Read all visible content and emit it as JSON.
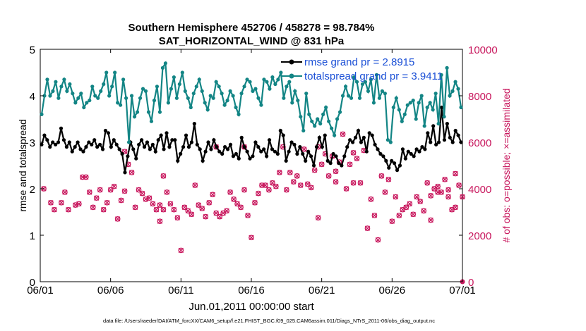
{
  "chart_data": {
    "type": "line",
    "title": "Southern Hemisphere 452706 / 458278 = 98.784%",
    "subtitle": "SAT_HORIZONTAL_WIND @ 831 hPa",
    "xlabel": "Jun.01,2011 00:00:00 start",
    "ylabel": "rmse and totalspread",
    "y2label": "# of obs: o=possible; ×=assimilated",
    "footnote": "data file: /Users/raeder/DAI/ATM_forcXX/CAM6_setup/f.e21.FHIST_BGC.f09_025.CAM6assim.011/Diags_NTrS_2011-06/obs_diag_output.nc",
    "xlim": [
      0,
      30
    ],
    "ylim": [
      0,
      5
    ],
    "y2lim": [
      0,
      10000
    ],
    "x_ticks": [
      {
        "pos": 0,
        "label": "06/01"
      },
      {
        "pos": 5,
        "label": "06/06"
      },
      {
        "pos": 10,
        "label": "06/11"
      },
      {
        "pos": 15,
        "label": "06/16"
      },
      {
        "pos": 20,
        "label": "06/21"
      },
      {
        "pos": 25,
        "label": "06/26"
      },
      {
        "pos": 30,
        "label": "07/01"
      }
    ],
    "y_ticks": [
      "0",
      "1",
      "2",
      "3",
      "4",
      "5"
    ],
    "y2_ticks": [
      "0",
      "2000",
      "4000",
      "6000",
      "8000",
      "10000"
    ],
    "legend_position": "top-right",
    "series": [
      {
        "name": "rmse grand pr = 2.8915",
        "axis": "left",
        "color": "#000000",
        "marker": "dot",
        "values": [
          2.95,
          3.15,
          3.05,
          2.9,
          3.0,
          2.95,
          3.0,
          3.3,
          3.05,
          2.9,
          3.0,
          2.8,
          2.9,
          3.0,
          2.85,
          2.8,
          2.9,
          3.0,
          2.95,
          3.05,
          2.9,
          2.95,
          2.85,
          3.25,
          3.2,
          2.9,
          3.05,
          2.95,
          2.85,
          2.75,
          2.35,
          2.7,
          3.0,
          2.85,
          2.65,
          2.95,
          3.05,
          2.9,
          3.0,
          2.85,
          2.95,
          2.8,
          3.05,
          3.15,
          2.85,
          3.2,
          2.9,
          3.05,
          3.05,
          2.6,
          2.75,
          2.9,
          3.15,
          2.9,
          3.0,
          3.4,
          2.95,
          2.85,
          2.6,
          2.8,
          3.0,
          2.85,
          3.05,
          2.9,
          2.8,
          2.75,
          2.9,
          2.85,
          2.95,
          2.7,
          2.75,
          2.65,
          3.1,
          2.9,
          2.8,
          2.65,
          2.7,
          3.0,
          2.9,
          2.8,
          2.85,
          2.7,
          3.05,
          2.85,
          2.8,
          2.75,
          3.25,
          3.15,
          2.6,
          2.8,
          3.0,
          2.95,
          2.75,
          2.9,
          2.75,
          2.6,
          2.8,
          2.7,
          2.5,
          2.9,
          3.1,
          2.9,
          3.15,
          2.6,
          2.55,
          2.75,
          2.7,
          2.55,
          2.5,
          2.7,
          2.9,
          3.05,
          3.0,
          3.1,
          3.25,
          3.0,
          3.1,
          2.8,
          3.2,
          3.15,
          2.95,
          2.85,
          2.75,
          2.7,
          2.6,
          2.45,
          2.6,
          2.55,
          2.4,
          2.5,
          2.85,
          2.65,
          2.8,
          2.75,
          2.7,
          2.85,
          2.8,
          2.9,
          2.85,
          3.2,
          3.0,
          3.35,
          2.95,
          3.0,
          3.75,
          3.05,
          3.4,
          3.1,
          3.0,
          3.25,
          3.15,
          3.0
        ]
      },
      {
        "name": "totalspread grand pr = 3.9411",
        "axis": "left",
        "color": "#138585",
        "marker": "dot",
        "values": [
          3.6,
          4.0,
          4.35,
          4.0,
          4.1,
          4.3,
          3.95,
          4.2,
          4.35,
          4.1,
          4.25,
          4.05,
          3.85,
          3.95,
          4.05,
          3.75,
          3.85,
          3.9,
          4.2,
          4.0,
          3.95,
          4.1,
          4.25,
          4.5,
          4.0,
          4.2,
          4.5,
          3.85,
          3.8,
          4.35,
          3.95,
          3.0,
          4.0,
          3.55,
          3.65,
          3.95,
          4.15,
          4.1,
          3.65,
          3.45,
          3.9,
          4.2,
          3.65,
          4.6,
          4.7,
          3.85,
          4.15,
          4.4,
          3.95,
          4.25,
          4.5,
          4.1,
          3.95,
          3.75,
          4.05,
          4.2,
          4.35,
          4.1,
          3.85,
          3.7,
          4.0,
          3.95,
          4.3,
          4.2,
          4.05,
          3.8,
          3.9,
          4.1,
          4.0,
          3.75,
          3.6,
          4.05,
          4.2,
          4.35,
          4.3,
          4.1,
          4.15,
          3.95,
          3.8,
          4.35,
          4.3,
          4.15,
          4.4,
          4.25,
          4.35,
          4.5,
          3.95,
          4.2,
          4.3,
          3.85,
          4.1,
          3.9,
          3.55,
          3.25,
          4.05,
          3.6,
          3.45,
          3.35,
          3.5,
          3.4,
          3.6,
          3.75,
          3.45,
          3.3,
          3.15,
          3.5,
          3.65,
          4.0,
          4.2,
          4.0,
          3.95,
          4.4,
          4.3,
          3.95,
          4.25,
          4.3,
          4.1,
          4.35,
          3.85,
          4.45,
          3.95,
          4.1,
          4.05,
          3.05,
          3.0,
          3.75,
          3.95,
          3.7,
          3.45,
          3.6,
          3.8,
          3.85,
          3.9,
          3.5,
          3.85,
          4.0,
          3.35,
          3.75,
          3.85,
          3.7,
          4.05,
          3.4,
          4.45,
          3.55,
          4.6,
          4.0,
          4.1,
          4.3,
          4.15,
          3.75
        ]
      },
      {
        "name": "# of obs possible",
        "axis": "right",
        "color": "#c8175d",
        "marker": "circle",
        "values": [
          4000,
          3400,
          3100,
          3400,
          3850,
          3100,
          3300,
          3350,
          4500,
          4500,
          3850,
          3200,
          3600,
          3950,
          3100,
          3400,
          3950,
          4100,
          2700,
          3500,
          3900,
          5050,
          4700,
          3200,
          3950,
          3800,
          3550,
          3600,
          3350,
          3100,
          3300,
          3100,
          3850,
          3350,
          3100,
          2750,
          1350,
          3200,
          3050,
          2900,
          4150,
          3300,
          3150,
          2800,
          3400,
          3750,
          2950,
          2800,
          2950,
          3050,
          3850,
          3550,
          3350,
          3200,
          3950,
          2850,
          1900,
          3400,
          3800,
          4150,
          4150,
          3950,
          4250,
          4100,
          4700,
          5800,
          3950,
          4700,
          4300,
          4550,
          4150,
          5700,
          4200,
          4050,
          4800,
          5800,
          5050,
          5500,
          4550,
          5400,
          4750,
          5150,
          6350,
          4000,
          5050,
          5550,
          5300,
          4250,
          5650,
          2300,
          3550,
          2850,
          1800,
          4550,
          3850,
          4400,
          2600,
          3650,
          2850,
          3100,
          3200,
          3350,
          2900,
          3650,
          3450,
          3050,
          4250,
          3700,
          4000,
          4100,
          3850,
          4400,
          3650,
          3100,
          3200,
          4150,
          3650,
          2600,
          4550,
          5600,
          5800,
          5800,
          4300,
          4250,
          2750,
          2650,
          3850,
          3950,
          4650,
          4000,
          5500,
          4900,
          4400
        ]
      },
      {
        "name": "# of obs assimilated",
        "axis": "right",
        "color": "#c8175d",
        "marker": "x",
        "values": [
          4000,
          3400,
          3100,
          3400,
          3850,
          3100,
          3300,
          3350,
          4500,
          4500,
          3850,
          3200,
          3600,
          3950,
          3100,
          3400,
          3950,
          4100,
          2700,
          3500,
          3900,
          5050,
          4700,
          3200,
          3950,
          3800,
          3550,
          3600,
          3350,
          3100,
          3300,
          3100,
          3850,
          3350,
          3100,
          2750,
          1350,
          3200,
          3050,
          2900,
          4150,
          3300,
          3150,
          2800,
          3400,
          3750,
          2950,
          2800,
          2950,
          3050,
          3850,
          3550,
          3350,
          3200,
          3950,
          2850,
          1900,
          3400,
          3800,
          4150,
          4150,
          3950,
          4250,
          4100,
          4700,
          5800,
          3950,
          4700,
          4300,
          4550,
          4150,
          5700,
          4200,
          4050,
          4800,
          5800,
          5050,
          5500,
          4550,
          5400,
          4750,
          5150,
          6350,
          4000,
          5050,
          5550,
          5300,
          4250,
          5650,
          2300,
          3550,
          2850,
          1800,
          4550,
          3850,
          4400,
          2600,
          3650,
          2850,
          3100,
          3200,
          3350,
          2900,
          3650,
          3450,
          3050,
          4250,
          3700,
          4000,
          4100,
          3850,
          4400,
          3650,
          3100,
          3200,
          4150,
          3650,
          2600,
          4550,
          5600,
          5800,
          5800,
          4300,
          4250,
          2750,
          2650,
          3850,
          3950,
          4650,
          4000,
          5500,
          4900,
          4400
        ]
      }
    ],
    "right_axis_x": [
      0.25,
      0.75,
      1.0,
      1.5,
      1.75,
      2.0,
      2.5,
      2.75,
      3.0,
      3.25,
      3.5,
      3.75,
      4.0,
      4.25,
      4.5,
      4.75,
      5.0,
      5.25,
      5.5,
      5.75,
      6.0,
      6.25,
      6.5,
      6.75,
      7.0,
      7.25,
      7.5,
      7.75,
      8.0,
      8.25,
      8.5,
      8.75,
      9.0,
      9.25,
      9.5,
      9.75,
      10.0,
      10.25,
      10.5,
      10.75,
      11.0,
      11.25,
      11.5,
      11.75,
      12.0,
      12.25,
      12.5,
      12.75,
      13.0,
      13.25,
      13.5,
      13.75,
      14.0,
      14.25,
      14.5,
      14.75,
      15.0,
      15.25,
      15.5,
      15.75,
      16.0,
      16.25,
      16.5,
      16.75,
      17.0,
      17.25,
      17.5,
      17.75,
      18.0,
      18.25,
      18.5,
      18.75,
      19.0,
      19.25,
      19.5,
      19.75,
      20.0,
      20.25,
      20.5,
      20.75,
      21.0,
      21.25,
      21.5,
      21.75,
      22.0,
      22.25,
      22.5,
      22.75,
      23.0,
      23.25,
      23.5,
      23.75,
      24.0,
      24.25,
      24.5,
      24.75,
      25.0,
      25.25,
      25.5,
      25.75,
      26.0,
      26.25,
      26.5,
      26.75,
      27.0,
      27.25,
      27.5,
      27.75,
      28.0,
      28.25,
      28.5,
      28.75,
      29.0,
      29.25,
      29.5,
      29.75,
      30.0,
      8.5,
      8.75,
      6.0,
      12.5,
      14.5,
      21.0,
      22.25,
      19.75,
      27.75,
      28.25,
      29.0,
      29.5
    ]
  }
}
